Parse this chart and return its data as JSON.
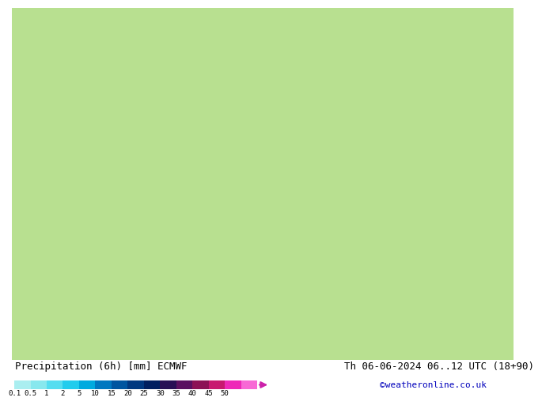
{
  "title_left": "Precipitation (6h) [mm] ECMWF",
  "title_right": "Th 06-06-2024 06..12 UTC (18+90)",
  "credit": "©weatheronline.co.uk",
  "colorbar_labels": [
    "0.1",
    "0.5",
    "1",
    "2",
    "5",
    "10",
    "15",
    "20",
    "25",
    "30",
    "35",
    "40",
    "45",
    "50"
  ],
  "colorbar_colors": [
    "#aaeef0",
    "#88e8ee",
    "#55ddf0",
    "#22cced",
    "#00aadf",
    "#0077c0",
    "#0055a0",
    "#003880",
    "#001f60",
    "#280f55",
    "#5a1060",
    "#8c1255",
    "#c81870",
    "#ee28b8",
    "#f868d5"
  ],
  "fig_bg_color": "#ffffff",
  "label_color": "#000000",
  "credit_color": "#0000bb",
  "title_fontsize": 9,
  "label_fontsize": 6.5,
  "credit_fontsize": 8,
  "colorbar_arrow_color": "#cc22aa"
}
